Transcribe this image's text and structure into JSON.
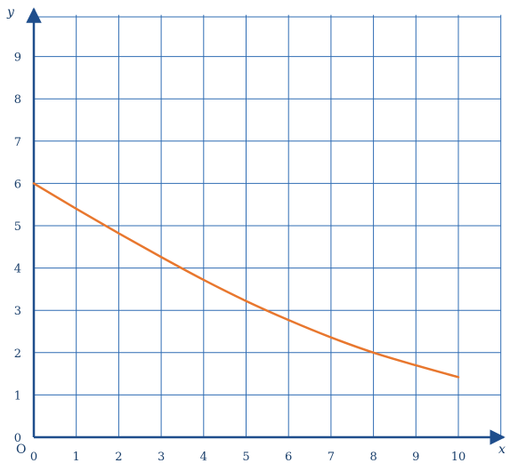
{
  "chart_data": {
    "type": "line",
    "xlabel": "x",
    "ylabel": "y",
    "origin_label": "O",
    "xlim": [
      0,
      10.5
    ],
    "ylim": [
      0,
      9.9
    ],
    "x_ticks": [
      "0",
      "1",
      "2",
      "3",
      "4",
      "5",
      "6",
      "7",
      "8",
      "9",
      "10"
    ],
    "y_ticks": [
      "0",
      "1",
      "2",
      "3",
      "4",
      "5",
      "6",
      "7",
      "8",
      "9"
    ],
    "grid": true,
    "series": [
      {
        "color": "#e8772e",
        "x": [
          0,
          1,
          2,
          3,
          4,
          5,
          6,
          7,
          8,
          9,
          10
        ],
        "y": [
          6.0,
          5.4,
          4.82,
          4.26,
          3.72,
          3.22,
          2.77,
          2.36,
          2.0,
          1.7,
          1.42
        ]
      }
    ]
  },
  "colors": {
    "grid": "#2f6cb3",
    "axis": "#1f4e8c",
    "curve": "#e8772e"
  }
}
